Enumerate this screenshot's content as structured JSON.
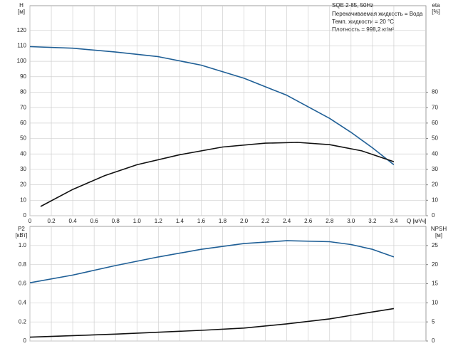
{
  "chart_data": [
    {
      "type": "line",
      "title": "SQE 2-85, 50Hz",
      "annotations": [
        "Перекачиваемая жидкость = Вода",
        "Темп. жидкости = 20 °C",
        "Плотность = 998,2 кг/м³"
      ],
      "x_label": "Q [м³/ч]",
      "y_label": "H",
      "y_unit": "[м]",
      "y2_label": "eta",
      "y2_unit": "[%]",
      "xlim": [
        0,
        3.7
      ],
      "xticks": [
        0,
        0.2,
        0.4,
        0.6,
        0.8,
        {
          "value": 1.0,
          "label": "1.0"
        },
        1.2,
        1.4,
        1.6,
        1.8,
        {
          "value": 2.0,
          "label": "2.0"
        },
        2.2,
        2.4,
        2.6,
        2.8,
        {
          "value": 3.0,
          "label": "3.0"
        },
        3.2,
        3.4
      ],
      "ylim": [
        0,
        136
      ],
      "yticks": [
        0,
        10,
        20,
        30,
        40,
        50,
        60,
        70,
        80,
        90,
        100,
        110,
        120
      ],
      "y2lim": [
        0,
        136
      ],
      "y2ticks": [
        0,
        10,
        20,
        30,
        40,
        50,
        60,
        70,
        80
      ],
      "grid": true,
      "series": [
        {
          "name": "H",
          "color": "#1f5f96",
          "x": [
            0,
            0.4,
            0.8,
            1.2,
            1.6,
            2.0,
            2.4,
            2.8,
            3.0,
            3.2,
            3.4
          ],
          "values": [
            109.5,
            108.5,
            106,
            103,
            97.5,
            89,
            78,
            63,
            54,
            44,
            33
          ]
        },
        {
          "name": "eta",
          "color": "#111111",
          "axis": "y2",
          "x": [
            0.1,
            0.4,
            0.7,
            1.0,
            1.4,
            1.8,
            2.2,
            2.5,
            2.8,
            3.1,
            3.4
          ],
          "values": [
            6,
            17,
            26,
            33,
            39.5,
            44.5,
            47,
            47.5,
            46,
            42,
            35
          ]
        }
      ]
    },
    {
      "type": "line",
      "y_label": "P2",
      "y_unit": "[кВт]",
      "y2_label": "NPSH",
      "y2_unit": "[м]",
      "xlim": [
        0,
        3.7
      ],
      "ylim": [
        0,
        1.2
      ],
      "yticks": [
        0,
        0.2,
        0.4,
        0.6,
        0.8,
        {
          "value": 1.0,
          "label": "1.0"
        }
      ],
      "y2lim": [
        0,
        30
      ],
      "y2ticks": [
        0,
        5,
        10,
        15,
        20,
        25
      ],
      "grid": true,
      "series": [
        {
          "name": "P2",
          "color": "#1f5f96",
          "x": [
            0,
            0.4,
            0.8,
            1.2,
            1.6,
            2.0,
            2.4,
            2.8,
            3.0,
            3.2,
            3.4
          ],
          "values": [
            0.61,
            0.69,
            0.79,
            0.88,
            0.96,
            1.02,
            1.05,
            1.04,
            1.01,
            0.96,
            0.88
          ]
        },
        {
          "name": "NPSH",
          "color": "#111111",
          "axis": "y2",
          "x": [
            0,
            0.8,
            1.6,
            2.0,
            2.4,
            2.8,
            3.0,
            3.2,
            3.4
          ],
          "values": [
            1.0,
            1.8,
            2.8,
            3.4,
            4.5,
            5.8,
            6.7,
            7.6,
            8.5
          ]
        }
      ]
    }
  ]
}
